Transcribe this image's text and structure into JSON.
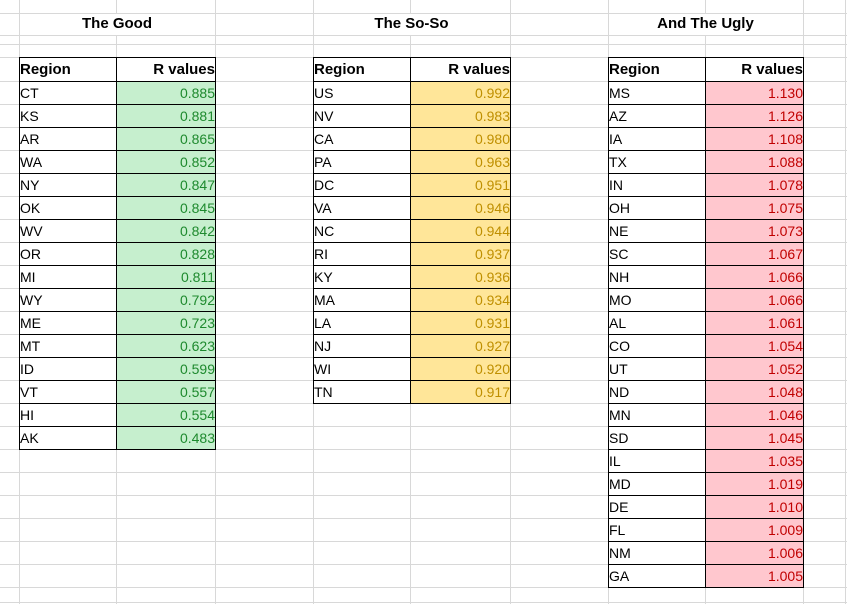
{
  "sheet": {
    "gridline_color": "#d8d8d8",
    "table_border_color": "#000000"
  },
  "headers": {
    "region": "Region",
    "values": "R values"
  },
  "tables": [
    {
      "id": "good",
      "title": "The Good",
      "value_bg": "#c6efce",
      "value_color": "#1e8a2e",
      "rows": [
        {
          "region": "CT",
          "value": "0.885"
        },
        {
          "region": "KS",
          "value": "0.881"
        },
        {
          "region": "AR",
          "value": "0.865"
        },
        {
          "region": "WA",
          "value": "0.852"
        },
        {
          "region": "NY",
          "value": "0.847"
        },
        {
          "region": "OK",
          "value": "0.845"
        },
        {
          "region": "WV",
          "value": "0.842"
        },
        {
          "region": "OR",
          "value": "0.828"
        },
        {
          "region": "MI",
          "value": "0.811"
        },
        {
          "region": "WY",
          "value": "0.792"
        },
        {
          "region": "ME",
          "value": "0.723"
        },
        {
          "region": "MT",
          "value": "0.623"
        },
        {
          "region": "ID",
          "value": "0.599"
        },
        {
          "region": "VT",
          "value": "0.557"
        },
        {
          "region": "HI",
          "value": "0.554"
        },
        {
          "region": "AK",
          "value": "0.483"
        }
      ]
    },
    {
      "id": "soso",
      "title": "The So-So",
      "value_bg": "#ffe699",
      "value_color": "#bf8f00",
      "rows": [
        {
          "region": "US",
          "value": "0.992"
        },
        {
          "region": "NV",
          "value": "0.983"
        },
        {
          "region": "CA",
          "value": "0.980"
        },
        {
          "region": "PA",
          "value": "0.963"
        },
        {
          "region": "DC",
          "value": "0.951"
        },
        {
          "region": "VA",
          "value": "0.946"
        },
        {
          "region": "NC",
          "value": "0.944"
        },
        {
          "region": "RI",
          "value": "0.937"
        },
        {
          "region": "KY",
          "value": "0.936"
        },
        {
          "region": "MA",
          "value": "0.934"
        },
        {
          "region": "LA",
          "value": "0.931"
        },
        {
          "region": "NJ",
          "value": "0.927"
        },
        {
          "region": "WI",
          "value": "0.920"
        },
        {
          "region": "TN",
          "value": "0.917"
        }
      ]
    },
    {
      "id": "ugly",
      "title": "And The Ugly",
      "value_bg": "#ffc7ce",
      "value_color": "#c00000",
      "rows": [
        {
          "region": "MS",
          "value": "1.130"
        },
        {
          "region": "AZ",
          "value": "1.126"
        },
        {
          "region": "IA",
          "value": "1.108"
        },
        {
          "region": "TX",
          "value": "1.088"
        },
        {
          "region": "IN",
          "value": "1.078"
        },
        {
          "region": "OH",
          "value": "1.075"
        },
        {
          "region": "NE",
          "value": "1.073"
        },
        {
          "region": "SC",
          "value": "1.067"
        },
        {
          "region": "NH",
          "value": "1.066"
        },
        {
          "region": "MO",
          "value": "1.066"
        },
        {
          "region": "AL",
          "value": "1.061"
        },
        {
          "region": "CO",
          "value": "1.054"
        },
        {
          "region": "UT",
          "value": "1.052"
        },
        {
          "region": "ND",
          "value": "1.048"
        },
        {
          "region": "MN",
          "value": "1.046"
        },
        {
          "region": "SD",
          "value": "1.045"
        },
        {
          "region": "IL",
          "value": "1.035"
        },
        {
          "region": "MD",
          "value": "1.019"
        },
        {
          "region": "DE",
          "value": "1.010"
        },
        {
          "region": "FL",
          "value": "1.009"
        },
        {
          "region": "NM",
          "value": "1.006"
        },
        {
          "region": "GA",
          "value": "1.005"
        }
      ]
    }
  ]
}
